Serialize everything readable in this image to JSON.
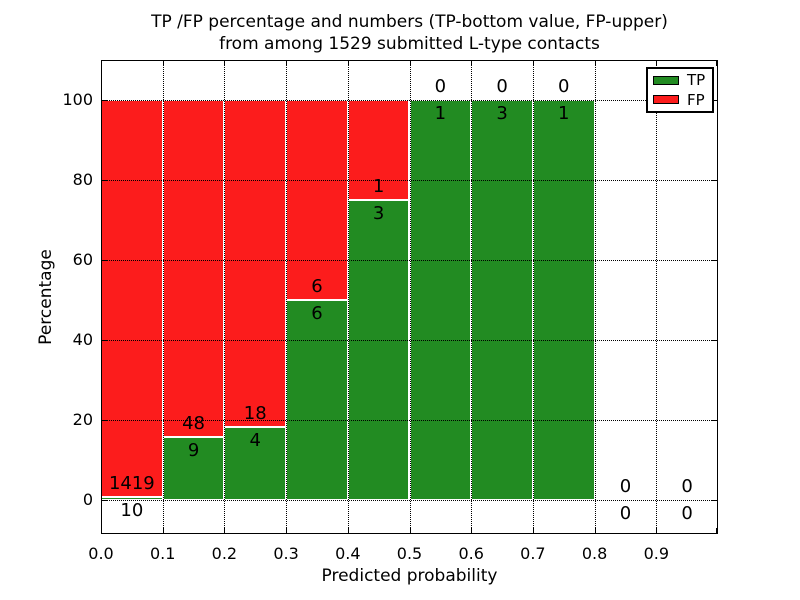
{
  "chart_data": {
    "type": "bar",
    "stacked": true,
    "title_line1": "TP /FP percentage and numbers (TP-bottom value, FP-upper)",
    "title_line2": "from among 1529 submitted L-type contacts",
    "xlabel": "Predicted probability",
    "ylabel": "Percentage",
    "total_contacts": 1529,
    "x_tick_labels": [
      "0.0",
      "0.1",
      "0.2",
      "0.3",
      "0.4",
      "0.5",
      "0.6",
      "0.7",
      "0.8",
      "0.9"
    ],
    "y_tick_values": [
      0,
      20,
      40,
      60,
      80,
      100
    ],
    "y_tick_labels": [
      "0",
      "20",
      "40",
      "60",
      "80",
      "100"
    ],
    "xlim": [
      0.0,
      1.0
    ],
    "ylim": [
      -9,
      110
    ],
    "grid": "dotted",
    "legend": {
      "position": "upper right",
      "entries": [
        {
          "label": "TP",
          "color": "#228b22"
        },
        {
          "label": "FP",
          "color": "#fc1c1c"
        }
      ]
    },
    "bins": [
      {
        "x_start": 0.0,
        "x_end": 0.1,
        "tp": 10,
        "fp": 1419
      },
      {
        "x_start": 0.1,
        "x_end": 0.2,
        "tp": 9,
        "fp": 48
      },
      {
        "x_start": 0.2,
        "x_end": 0.3,
        "tp": 4,
        "fp": 18
      },
      {
        "x_start": 0.3,
        "x_end": 0.4,
        "tp": 6,
        "fp": 6
      },
      {
        "x_start": 0.4,
        "x_end": 0.5,
        "tp": 3,
        "fp": 1
      },
      {
        "x_start": 0.5,
        "x_end": 0.6,
        "tp": 1,
        "fp": 0
      },
      {
        "x_start": 0.6,
        "x_end": 0.7,
        "tp": 3,
        "fp": 0
      },
      {
        "x_start": 0.7,
        "x_end": 0.8,
        "tp": 1,
        "fp": 0
      },
      {
        "x_start": 0.8,
        "x_end": 0.9,
        "tp": 0,
        "fp": 0
      },
      {
        "x_start": 0.9,
        "x_end": 1.0,
        "tp": 0,
        "fp": 0
      }
    ],
    "colors": {
      "tp": "#228b22",
      "fp": "#fc1c1c",
      "grid": "#000000",
      "background": "#ffffff"
    }
  }
}
